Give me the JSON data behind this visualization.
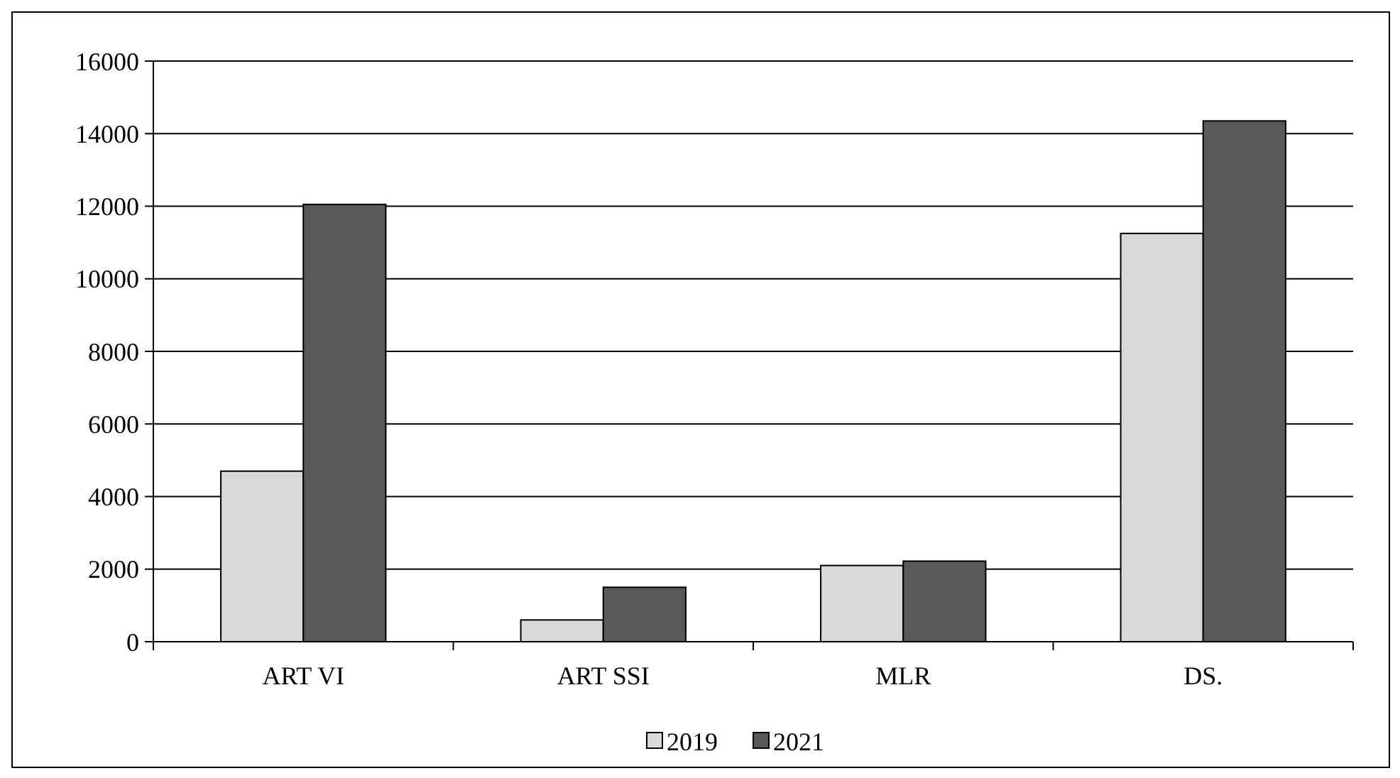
{
  "chart_data": {
    "type": "bar",
    "categories": [
      "ART VI",
      "ART SSI",
      "MLR",
      "DS."
    ],
    "series": [
      {
        "name": "2019",
        "color": "#d9d9d9",
        "values": [
          4700,
          600,
          2100,
          11250
        ]
      },
      {
        "name": "2021",
        "color": "#595959",
        "values": [
          12050,
          1500,
          2220,
          14350
        ]
      }
    ],
    "ylim": [
      0,
      16000
    ],
    "yticks": [
      0,
      2000,
      4000,
      6000,
      8000,
      10000,
      12000,
      14000,
      16000
    ],
    "grid": "y",
    "legend": "bottom"
  }
}
